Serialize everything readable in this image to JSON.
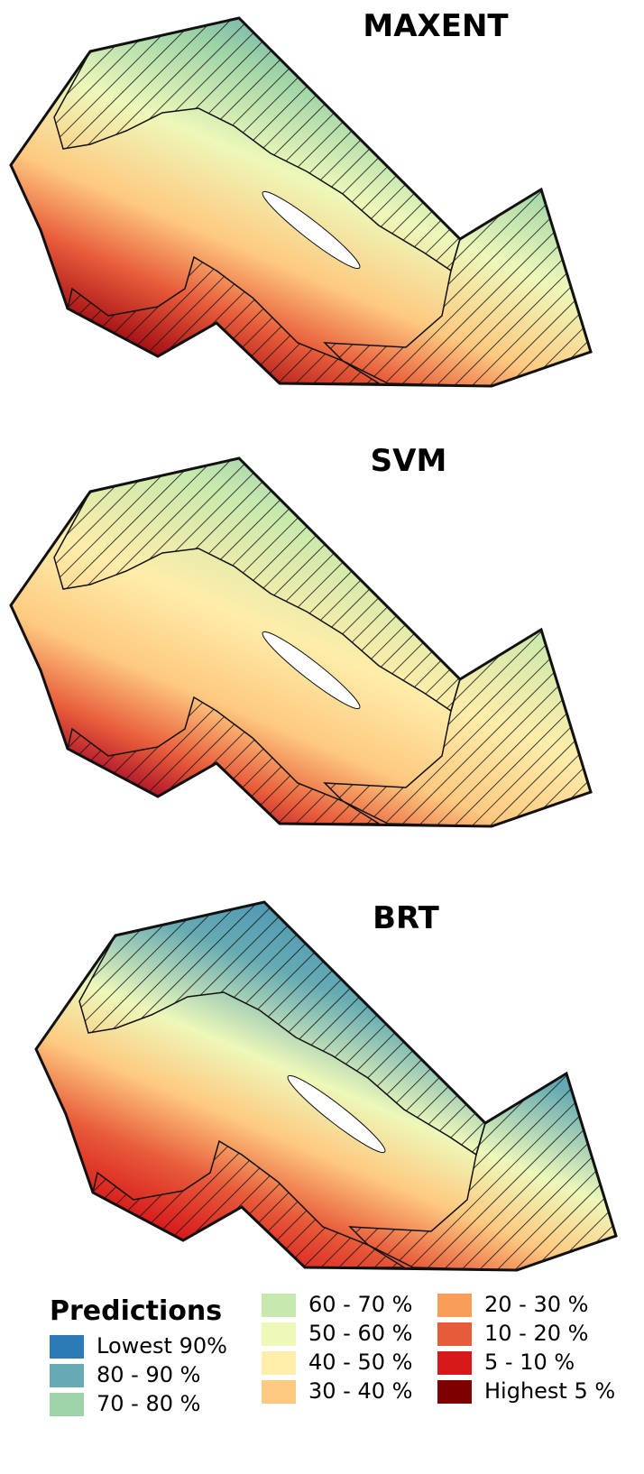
{
  "maps": [
    {
      "title": "MAXENT"
    },
    {
      "title": "SVM"
    },
    {
      "title": "BRT"
    }
  ],
  "legend": {
    "title": "Predictions",
    "items": [
      {
        "label": "Lowest 90%",
        "color": "#2c7bb6"
      },
      {
        "label": "80 - 90 %",
        "color": "#66abb3"
      },
      {
        "label": "70 - 80 %",
        "color": "#9dd3a7"
      },
      {
        "label": "60 - 70 %",
        "color": "#c7e9ad"
      },
      {
        "label": "50 - 60 %",
        "color": "#edf8b9"
      },
      {
        "label": "40 - 50 %",
        "color": "#ffedaa"
      },
      {
        "label": "30 - 40 %",
        "color": "#fec980"
      },
      {
        "label": "20 - 30 %",
        "color": "#f99e59"
      },
      {
        "label": "10 - 20 %",
        "color": "#e85b3a"
      },
      {
        "label": "5 - 10 %",
        "color": "#d7191c"
      },
      {
        "label": "Highest 5 %",
        "color": "#7f0000"
      }
    ]
  }
}
